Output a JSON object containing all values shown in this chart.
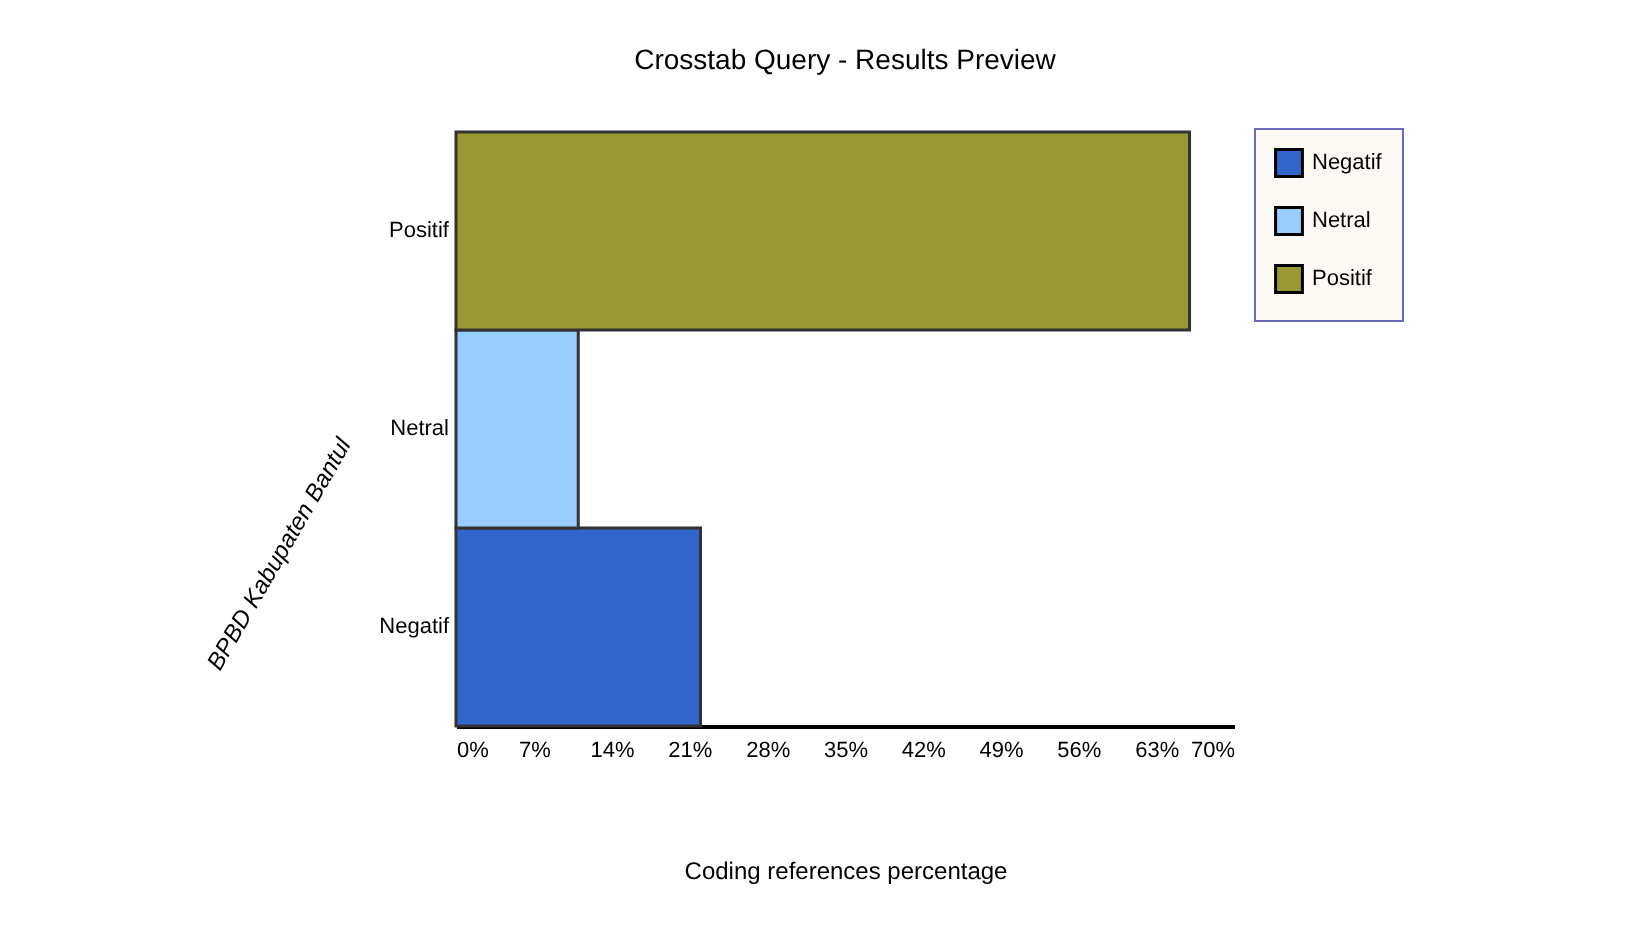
{
  "chart_data": {
    "type": "bar",
    "orientation": "horizontal",
    "title": "Crosstab Query - Results Preview",
    "xlabel": "Coding references percentage",
    "ylabel": "BPBD Kabupaten Bantul",
    "categories": [
      "Positif",
      "Netral",
      "Negatif"
    ],
    "series": [
      {
        "name": "Negatif",
        "color": "#3366cc",
        "values": [
          null,
          null,
          22
        ]
      },
      {
        "name": "Netral",
        "color": "#99ccff",
        "values": [
          null,
          11,
          null
        ]
      },
      {
        "name": "Positif",
        "color": "#999933",
        "values": [
          66,
          null,
          null
        ]
      }
    ],
    "xlim": [
      0,
      70
    ],
    "xticks": [
      {
        "value": 0,
        "label": "0%"
      },
      {
        "value": 7,
        "label": "7%"
      },
      {
        "value": 14,
        "label": "14%"
      },
      {
        "value": 21,
        "label": "21%"
      },
      {
        "value": 28,
        "label": "28%"
      },
      {
        "value": 35,
        "label": "35%"
      },
      {
        "value": 42,
        "label": "42%"
      },
      {
        "value": 49,
        "label": "49%"
      },
      {
        "value": 56,
        "label": "56%"
      },
      {
        "value": 63,
        "label": "63%"
      },
      {
        "value": 70,
        "label": "70%"
      }
    ],
    "legend": "right",
    "grid": false
  }
}
